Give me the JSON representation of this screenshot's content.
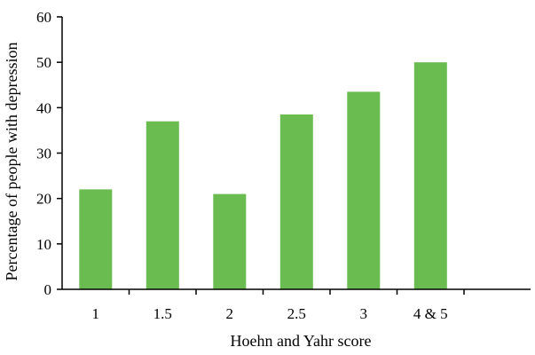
{
  "chart_data": {
    "type": "bar",
    "title": "",
    "xlabel": "Hoehn and Yahr score",
    "ylabel": "Percentage of people with depression",
    "categories": [
      "1",
      "1.5",
      "2",
      "2.5",
      "3",
      "4 & 5"
    ],
    "values": [
      22,
      37,
      21,
      38.5,
      43.5,
      50
    ],
    "ylim": [
      0,
      60
    ],
    "yticks": [
      "0",
      "10",
      "20",
      "30",
      "40",
      "50",
      "60"
    ],
    "grid": false,
    "legend": "none",
    "bar_color": "#6abb50",
    "axis_color": "#000000"
  }
}
